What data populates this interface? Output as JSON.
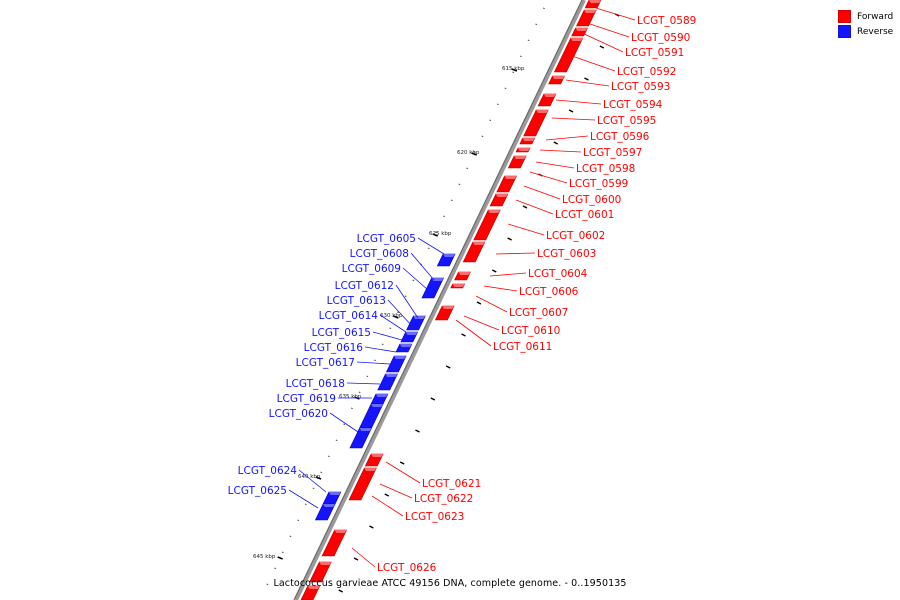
{
  "legend": {
    "items": [
      {
        "label": "Forward",
        "color": "#ff0000"
      },
      {
        "label": "Reverse",
        "color": "#1414ff"
      }
    ]
  },
  "caption": "Lactococcus garvieae ATCC 49156 DNA, complete genome. - 0..1950135",
  "scale_ticks": [
    "615 kbp",
    "620 kbp",
    "625 kbp",
    "630 kbp",
    "635 kbp",
    "640 kbp",
    "645 kbp"
  ],
  "forward_genes": [
    "LCGT_0589",
    "LCGT_0590",
    "LCGT_0591",
    "LCGT_0592",
    "LCGT_0593",
    "LCGT_0594",
    "LCGT_0595",
    "LCGT_0596",
    "LCGT_0597",
    "LCGT_0598",
    "LCGT_0599",
    "LCGT_0600",
    "LCGT_0601",
    "LCGT_0602",
    "LCGT_0603",
    "LCGT_0604",
    "LCGT_0606",
    "LCGT_0607",
    "LCGT_0610",
    "LCGT_0611",
    "LCGT_0621",
    "LCGT_0622",
    "LCGT_0623",
    "LCGT_0626"
  ],
  "reverse_genes": [
    "LCGT_0605",
    "LCGT_0608",
    "LCGT_0609",
    "LCGT_0612",
    "LCGT_0613",
    "LCGT_0614",
    "LCGT_0615",
    "LCGT_0616",
    "LCGT_0617",
    "LCGT_0618",
    "LCGT_0619",
    "LCGT_0620",
    "LCGT_0624",
    "LCGT_0625"
  ],
  "colors": {
    "forward": "#ff0000",
    "reverse": "#1414ff",
    "backbone": "#808080"
  }
}
